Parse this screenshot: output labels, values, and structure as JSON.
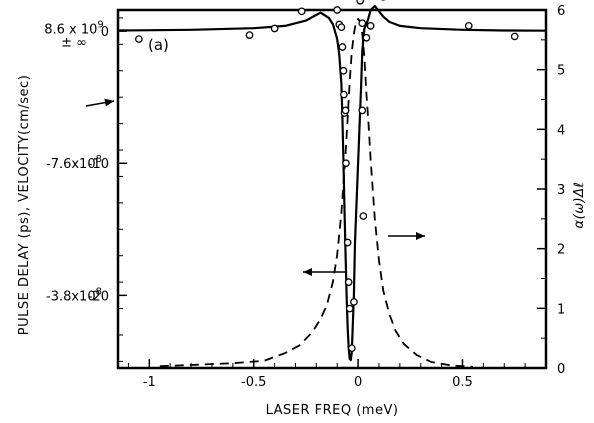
{
  "chart_data": {
    "type": "line",
    "panel_label": "(a)",
    "xlabel": "LASER FREQ (meV)",
    "ylabel_left": "PULSE DELAY (ps), VELOCITY(cm/sec)",
    "ylabel_right": "α(ω)Δℓ",
    "xlim": [
      -1.15,
      0.9
    ],
    "ylim_left": [
      -25.5,
      1.6
    ],
    "ylim_right": [
      0,
      6
    ],
    "x_ticks": [
      -1,
      -0.5,
      0,
      0.5
    ],
    "x_tick_labels": [
      "-1",
      "-0.5",
      "0",
      "0.5"
    ],
    "y_left_ticks": [
      0,
      -10,
      -20
    ],
    "y_left_tick_labels": [
      "0",
      "-10",
      "-20"
    ],
    "y_right_ticks": [
      0,
      1,
      2,
      3,
      4,
      5,
      6
    ],
    "y_right_tick_labels": [
      "0",
      "1",
      "2",
      "3",
      "4",
      "5",
      "6"
    ],
    "velocity_labels": [
      {
        "text": "8.6 x 10^9",
        "at_delay": 0.2
      },
      {
        "text": "± ∞",
        "at_delay": -0.8
      },
      {
        "text": "-7.6x10^8",
        "at_delay": -10
      },
      {
        "text": "-3.8x10^8",
        "at_delay": -20
      }
    ],
    "series": [
      {
        "role": "pulse delay, theory (solid, left axis)",
        "axis": "left",
        "style": "solid",
        "x": [
          -1.15,
          -0.8,
          -0.5,
          -0.35,
          -0.25,
          -0.18,
          -0.14,
          -0.12,
          -0.1,
          -0.09,
          -0.08,
          -0.075,
          -0.07,
          -0.065,
          -0.06,
          -0.055,
          -0.05,
          -0.045,
          -0.04,
          -0.035,
          -0.03,
          -0.02,
          -0.015,
          0,
          0.015,
          0.02,
          0.03,
          0.04,
          0.05,
          0.06,
          0.08,
          0.1,
          0.12,
          0.15,
          0.2,
          0.3,
          0.5,
          0.7,
          0.9
        ],
        "y": [
          0.05,
          0.1,
          0.22,
          0.4,
          0.8,
          1.4,
          1.0,
          0.5,
          -0.6,
          -1.8,
          -4.0,
          -6.5,
          -10.0,
          -13.5,
          -17.0,
          -20.0,
          -22.5,
          -24.0,
          -24.8,
          -24.9,
          -24.3,
          -20.0,
          -16.0,
          -10.0,
          -4.0,
          -1.5,
          0.2,
          0.5,
          1.0,
          1.6,
          1.9,
          1.5,
          1.1,
          0.7,
          0.4,
          0.22,
          0.1,
          0.05,
          0.03
        ]
      },
      {
        "role": "absorption α(ω)Δℓ (dashed, right axis)",
        "axis": "right",
        "style": "dashed",
        "x": [
          -0.95,
          -0.8,
          -0.6,
          -0.45,
          -0.35,
          -0.28,
          -0.22,
          -0.18,
          -0.15,
          -0.12,
          -0.1,
          -0.08,
          -0.06,
          -0.05,
          -0.04,
          -0.03,
          -0.02,
          -0.01,
          0,
          0.01,
          0.02,
          0.03,
          0.04,
          0.05,
          0.06,
          0.08,
          0.1,
          0.12,
          0.15,
          0.18,
          0.22,
          0.28,
          0.35,
          0.45,
          0.55
        ],
        "y": [
          0.03,
          0.05,
          0.08,
          0.12,
          0.25,
          0.38,
          0.6,
          0.82,
          1.05,
          1.45,
          1.9,
          2.6,
          3.6,
          4.2,
          4.8,
          5.3,
          5.6,
          5.8,
          5.85,
          5.8,
          5.6,
          5.2,
          4.6,
          4.1,
          3.5,
          2.5,
          1.8,
          1.3,
          0.9,
          0.62,
          0.4,
          0.22,
          0.1,
          0.04,
          0.02
        ]
      },
      {
        "role": "measured pulse delay (open circles, left axis)",
        "axis": "left",
        "style": "markers",
        "x": [
          -1.05,
          -0.52,
          -0.4,
          -0.27,
          -0.14,
          -0.1,
          -0.09,
          -0.08,
          -0.075,
          -0.07,
          -0.068,
          -0.065,
          -0.06,
          -0.058,
          -0.05,
          -0.045,
          -0.04,
          -0.03,
          -0.02,
          0.01,
          0.02,
          0.02,
          0.025,
          0.04,
          0.06,
          0.12,
          0.53,
          0.75
        ],
        "y": [
          -0.6,
          -0.3,
          0.2,
          1.5,
          3.6,
          1.6,
          0.5,
          0.3,
          -1.2,
          -3.0,
          -4.8,
          -6.2,
          -6.0,
          -10.0,
          -16.0,
          -19.0,
          -21.0,
          -24.0,
          -20.5,
          2.3,
          0.6,
          -6.0,
          -14.0,
          -0.5,
          0.4,
          2.6,
          0.4,
          -0.4
        ]
      }
    ],
    "annotations": [
      {
        "type": "arrow",
        "direction": "left",
        "points_to": "left axis (pulse delay)"
      },
      {
        "type": "arrow",
        "direction": "right",
        "points_to": "right axis (α(ω)Δℓ)"
      },
      {
        "type": "arrow",
        "direction": "right",
        "points_to": "zero of left axis (velocity ± ∞)"
      }
    ]
  }
}
